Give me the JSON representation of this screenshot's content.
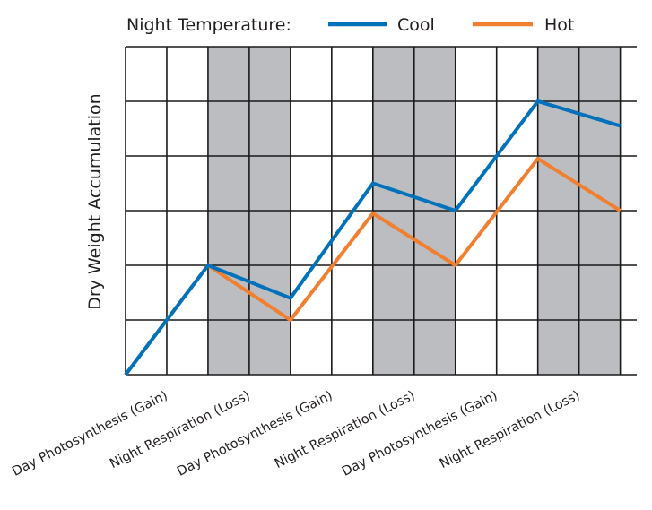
{
  "chart_data": {
    "type": "line",
    "title": "",
    "xlabel": "",
    "ylabel": "Dry Weight Accumulation",
    "legend_title": "Night Temperature:",
    "legend_position": "top",
    "grid": true,
    "x_tick_labels": [
      "Day Photosynthesis (Gain)",
      "Night Respiration (Loss)",
      "Day Photosynthesis (Gain)",
      "Night Respiration (Loss)",
      "Day Photosynthesis (Gain)",
      "Night Respiration (Loss)"
    ],
    "shaded_periods": [
      "night",
      "night",
      "night"
    ],
    "shade_color": "#bcbdc0",
    "x": [
      0,
      1,
      2,
      3,
      4,
      5,
      6
    ],
    "ylim": [
      0,
      6
    ],
    "xlim": [
      0,
      6.2
    ],
    "series": [
      {
        "name": "Cool",
        "color": "#0072bc",
        "values": [
          0,
          2.0,
          1.4,
          3.5,
          3.0,
          5.0,
          4.55
        ]
      },
      {
        "name": "Hot",
        "color": "#f07f30",
        "values": [
          0,
          2.0,
          1.0,
          2.95,
          2.0,
          3.95,
          3.0
        ]
      }
    ]
  }
}
